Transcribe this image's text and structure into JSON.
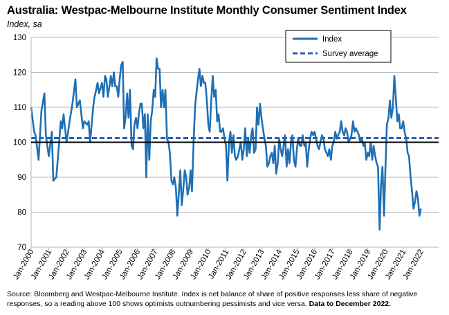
{
  "title": "Australia: Westpac-Melbourne Institute Monthly Consumer Sentiment Index",
  "subtitle": "Index, sa",
  "source": "Source: Bloomberg and Westpac-Melbourne Institute.  Index is net balance of share of positive responses less share of negative responses, so a reading above 100 shows optimists outnumbering pessimists and vice versa.",
  "source_bold": "Data to December 2022.",
  "colors": {
    "index": "#1f6fb4",
    "average": "#2b5fad",
    "grid": "#b5b5b5",
    "baseline": "#000000"
  },
  "chart_data": {
    "type": "line",
    "title": "Australia: Westpac-Melbourne Institute Monthly Consumer Sentiment Index",
    "ylabel": "Index, sa",
    "xlabel": "",
    "ylim": [
      70,
      130
    ],
    "yticks": [
      70,
      80,
      90,
      100,
      110,
      120,
      130
    ],
    "xlim": [
      2000.0,
      2023.0
    ],
    "xticks": [
      "Jan-2000",
      "Jan-2001",
      "Jan-2002",
      "Jan-2003",
      "Jan-2004",
      "Jan-2005",
      "Jan-2006",
      "Jan-2007",
      "Jan-2008",
      "Jan-2009",
      "Jan-2010",
      "Jan-2011",
      "Jan-2012",
      "Jan-2013",
      "Jan-2014",
      "Jan-2015",
      "Jan-2016",
      "Jan-2017",
      "Jan-2018",
      "Jan-2019",
      "Jan-2020",
      "Jan-2021",
      "Jan-2022"
    ],
    "grid": true,
    "legend_position": "top-right",
    "series": [
      {
        "name": "Index",
        "style": "solid",
        "points": [
          [
            2000.0,
            110
          ],
          [
            2000.17,
            103
          ],
          [
            2000.25,
            102
          ],
          [
            2000.42,
            95
          ],
          [
            2000.58,
            109
          ],
          [
            2000.75,
            114
          ],
          [
            2000.83,
            102
          ],
          [
            2001.0,
            96
          ],
          [
            2001.17,
            103
          ],
          [
            2001.25,
            89
          ],
          [
            2001.42,
            90
          ],
          [
            2001.58,
            100
          ],
          [
            2001.67,
            106
          ],
          [
            2001.75,
            104
          ],
          [
            2001.83,
            108
          ],
          [
            2002.0,
            100
          ],
          [
            2002.17,
            106
          ],
          [
            2002.33,
            111
          ],
          [
            2002.5,
            118
          ],
          [
            2002.58,
            110
          ],
          [
            2002.75,
            112
          ],
          [
            2002.92,
            104
          ],
          [
            2003.0,
            106
          ],
          [
            2003.17,
            105
          ],
          [
            2003.25,
            106
          ],
          [
            2003.33,
            100
          ],
          [
            2003.5,
            110
          ],
          [
            2003.58,
            113
          ],
          [
            2003.67,
            115
          ],
          [
            2003.75,
            117
          ],
          [
            2003.83,
            114
          ],
          [
            2004.0,
            117
          ],
          [
            2004.08,
            113
          ],
          [
            2004.17,
            119
          ],
          [
            2004.25,
            118
          ],
          [
            2004.33,
            113
          ],
          [
            2004.42,
            116
          ],
          [
            2004.5,
            119
          ],
          [
            2004.58,
            116
          ],
          [
            2004.67,
            120
          ],
          [
            2004.75,
            116
          ],
          [
            2004.83,
            116
          ],
          [
            2004.92,
            113
          ],
          [
            2005.0,
            118
          ],
          [
            2005.08,
            122
          ],
          [
            2005.17,
            123
          ],
          [
            2005.25,
            104
          ],
          [
            2005.33,
            107
          ],
          [
            2005.42,
            114
          ],
          [
            2005.5,
            107
          ],
          [
            2005.58,
            115
          ],
          [
            2005.67,
            99
          ],
          [
            2005.75,
            98
          ],
          [
            2005.83,
            105
          ],
          [
            2005.92,
            107
          ],
          [
            2006.0,
            104
          ],
          [
            2006.08,
            108
          ],
          [
            2006.17,
            111
          ],
          [
            2006.25,
            111
          ],
          [
            2006.33,
            104
          ],
          [
            2006.42,
            108
          ],
          [
            2006.5,
            90
          ],
          [
            2006.58,
            108
          ],
          [
            2006.67,
            95
          ],
          [
            2006.75,
            106
          ],
          [
            2006.83,
            109
          ],
          [
            2006.92,
            115
          ],
          [
            2007.0,
            113
          ],
          [
            2007.08,
            124
          ],
          [
            2007.17,
            121
          ],
          [
            2007.25,
            121
          ],
          [
            2007.33,
            110
          ],
          [
            2007.42,
            115
          ],
          [
            2007.5,
            110
          ],
          [
            2007.58,
            115
          ],
          [
            2007.67,
            101
          ],
          [
            2007.75,
            100
          ],
          [
            2007.83,
            97
          ],
          [
            2007.92,
            89
          ],
          [
            2008.0,
            88
          ],
          [
            2008.08,
            90
          ],
          [
            2008.17,
            87
          ],
          [
            2008.25,
            79
          ],
          [
            2008.33,
            85
          ],
          [
            2008.42,
            92
          ],
          [
            2008.5,
            82
          ],
          [
            2008.58,
            86
          ],
          [
            2008.67,
            92
          ],
          [
            2008.75,
            90
          ],
          [
            2008.83,
            85
          ],
          [
            2008.92,
            87
          ],
          [
            2009.0,
            92
          ],
          [
            2009.08,
            86
          ],
          [
            2009.17,
            100
          ],
          [
            2009.25,
            110
          ],
          [
            2009.33,
            114
          ],
          [
            2009.42,
            118
          ],
          [
            2009.5,
            121
          ],
          [
            2009.58,
            116
          ],
          [
            2009.67,
            119
          ],
          [
            2009.75,
            117
          ],
          [
            2009.83,
            117
          ],
          [
            2009.92,
            112
          ],
          [
            2010.0,
            105
          ],
          [
            2010.08,
            103
          ],
          [
            2010.17,
            112
          ],
          [
            2010.25,
            119
          ],
          [
            2010.33,
            113
          ],
          [
            2010.42,
            115
          ],
          [
            2010.5,
            106
          ],
          [
            2010.58,
            108
          ],
          [
            2010.67,
            103
          ],
          [
            2010.75,
            103
          ],
          [
            2010.83,
            104
          ],
          [
            2010.92,
            101
          ],
          [
            2011.0,
            99
          ],
          [
            2011.08,
            89
          ],
          [
            2011.17,
            100
          ],
          [
            2011.25,
            103
          ],
          [
            2011.33,
            97
          ],
          [
            2011.42,
            102
          ],
          [
            2011.5,
            96
          ],
          [
            2011.58,
            95
          ],
          [
            2011.67,
            96
          ],
          [
            2011.75,
            98
          ],
          [
            2011.83,
            100
          ],
          [
            2011.92,
            95
          ],
          [
            2012.0,
            98
          ],
          [
            2012.08,
            104
          ],
          [
            2012.17,
            96
          ],
          [
            2012.25,
            101
          ],
          [
            2012.33,
            97
          ],
          [
            2012.42,
            102
          ],
          [
            2012.5,
            104
          ],
          [
            2012.58,
            97
          ],
          [
            2012.67,
            98
          ],
          [
            2012.75,
            110
          ],
          [
            2012.83,
            105
          ],
          [
            2012.92,
            111
          ],
          [
            2013.0,
            107
          ],
          [
            2013.08,
            104
          ],
          [
            2013.17,
            101
          ],
          [
            2013.25,
            99
          ],
          [
            2013.33,
            93
          ],
          [
            2013.42,
            94
          ],
          [
            2013.5,
            96
          ],
          [
            2013.58,
            97
          ],
          [
            2013.67,
            94
          ],
          [
            2013.75,
            99
          ],
          [
            2013.83,
            91
          ],
          [
            2013.92,
            94
          ],
          [
            2014.0,
            101
          ],
          [
            2014.08,
            98
          ],
          [
            2014.17,
            96
          ],
          [
            2014.25,
            99
          ],
          [
            2014.33,
            102
          ],
          [
            2014.42,
            93
          ],
          [
            2014.5,
            98
          ],
          [
            2014.58,
            94
          ],
          [
            2014.67,
            100
          ],
          [
            2014.75,
            102
          ],
          [
            2014.83,
            95
          ],
          [
            2014.92,
            93
          ],
          [
            2015.0,
            98
          ],
          [
            2015.08,
            101
          ],
          [
            2015.17,
            99
          ],
          [
            2015.25,
            99
          ],
          [
            2015.33,
            102
          ],
          [
            2015.42,
            99
          ],
          [
            2015.5,
            100
          ],
          [
            2015.58,
            93
          ],
          [
            2015.67,
            98
          ],
          [
            2015.75,
            101
          ],
          [
            2015.83,
            103
          ],
          [
            2015.92,
            102
          ],
          [
            2016.0,
            103
          ],
          [
            2016.08,
            101
          ],
          [
            2016.17,
            99
          ],
          [
            2016.25,
            98
          ],
          [
            2016.33,
            100
          ],
          [
            2016.42,
            102
          ],
          [
            2016.5,
            101
          ],
          [
            2016.58,
            98
          ],
          [
            2016.67,
            97
          ],
          [
            2016.75,
            96
          ],
          [
            2016.83,
            98
          ],
          [
            2016.92,
            95
          ],
          [
            2017.0,
            99
          ],
          [
            2017.08,
            100
          ],
          [
            2017.17,
            103
          ],
          [
            2017.25,
            101
          ],
          [
            2017.33,
            102
          ],
          [
            2017.42,
            103
          ],
          [
            2017.5,
            106
          ],
          [
            2017.58,
            103
          ],
          [
            2017.67,
            102
          ],
          [
            2017.75,
            104
          ],
          [
            2017.83,
            103
          ],
          [
            2017.92,
            100
          ],
          [
            2018.0,
            101
          ],
          [
            2018.08,
            102
          ],
          [
            2018.17,
            106
          ],
          [
            2018.25,
            103
          ],
          [
            2018.33,
            104
          ],
          [
            2018.42,
            103
          ],
          [
            2018.5,
            102
          ],
          [
            2018.58,
            100
          ],
          [
            2018.67,
            101
          ],
          [
            2018.75,
            99
          ],
          [
            2018.83,
            100
          ],
          [
            2018.92,
            95
          ],
          [
            2019.0,
            97
          ],
          [
            2019.08,
            96
          ],
          [
            2019.17,
            100
          ],
          [
            2019.25,
            95
          ],
          [
            2019.33,
            99
          ],
          [
            2019.42,
            96
          ],
          [
            2019.5,
            94
          ],
          [
            2019.58,
            93
          ],
          [
            2019.67,
            75
          ],
          [
            2019.75,
            88
          ],
          [
            2019.83,
            93
          ],
          [
            2019.92,
            79
          ],
          [
            2020.0,
            93
          ],
          [
            2020.08,
            105
          ],
          [
            2020.17,
            107
          ],
          [
            2020.25,
            112
          ],
          [
            2020.33,
            107
          ],
          [
            2020.42,
            110
          ],
          [
            2020.5,
            119
          ],
          [
            2020.58,
            113
          ],
          [
            2020.67,
            106
          ],
          [
            2020.75,
            108
          ],
          [
            2020.83,
            104
          ],
          [
            2020.92,
            104
          ],
          [
            2021.0,
            106
          ],
          [
            2021.08,
            103
          ],
          [
            2021.17,
            101
          ],
          [
            2021.25,
            97
          ],
          [
            2021.33,
            96
          ],
          [
            2021.42,
            90
          ],
          [
            2021.5,
            86
          ],
          [
            2021.58,
            81
          ],
          [
            2021.67,
            83
          ],
          [
            2021.75,
            86
          ],
          [
            2021.83,
            84
          ],
          [
            2021.92,
            79
          ],
          [
            2022.0,
            81
          ]
        ]
      },
      {
        "name": "Survey average",
        "style": "dashed",
        "value": 101.2
      }
    ],
    "baseline": 100
  }
}
